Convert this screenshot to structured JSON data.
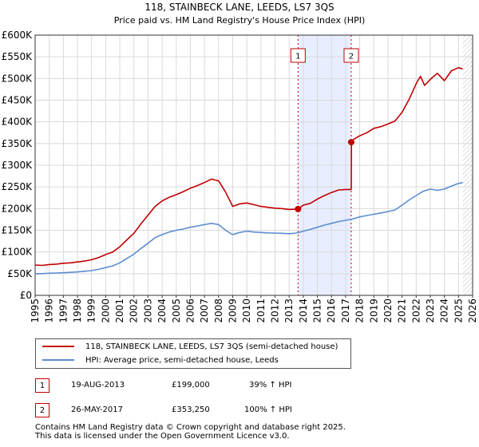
{
  "chart_data": {
    "type": "line",
    "title": "118, STAINBECK LANE, LEEDS, LS7 3QS",
    "subtitle": "Price paid vs. HM Land Registry's House Price Index (HPI)",
    "xlim": [
      1995,
      2026
    ],
    "ylim": [
      0,
      600000
    ],
    "x_ticks": [
      1995,
      1996,
      1997,
      1998,
      1999,
      2000,
      2001,
      2002,
      2003,
      2004,
      2005,
      2006,
      2007,
      2008,
      2009,
      2010,
      2011,
      2012,
      2013,
      2014,
      2015,
      2016,
      2017,
      2018,
      2019,
      2020,
      2021,
      2022,
      2023,
      2024,
      2025,
      2026
    ],
    "y_ticks": [
      {
        "value": 0,
        "label": "£0"
      },
      {
        "value": 50000,
        "label": "£50K"
      },
      {
        "value": 100000,
        "label": "£100K"
      },
      {
        "value": 150000,
        "label": "£150K"
      },
      {
        "value": 200000,
        "label": "£200K"
      },
      {
        "value": 250000,
        "label": "£250K"
      },
      {
        "value": 300000,
        "label": "£300K"
      },
      {
        "value": 350000,
        "label": "£350K"
      },
      {
        "value": 400000,
        "label": "£400K"
      },
      {
        "value": 450000,
        "label": "£450K"
      },
      {
        "value": 500000,
        "label": "£500K"
      },
      {
        "value": 550000,
        "label": "£550K"
      },
      {
        "value": 600000,
        "label": "£600K"
      }
    ],
    "series": [
      {
        "name": "118, STAINBECK LANE, LEEDS, LS7 3QS (semi-detached house)",
        "color": "#c00000",
        "x": [
          1995,
          1995.5,
          1996,
          1996.5,
          1997,
          1997.5,
          1998,
          1998.5,
          1999,
          1999.5,
          2000,
          2000.5,
          2001,
          2001.5,
          2002,
          2002.5,
          2003,
          2003.5,
          2004,
          2004.5,
          2005,
          2005.5,
          2006,
          2006.5,
          2007,
          2007.5,
          2008,
          2008.5,
          2009,
          2009.5,
          2010,
          2010.5,
          2011,
          2011.5,
          2012,
          2012.5,
          2013,
          2013.63,
          2014,
          2014.5,
          2015,
          2015.5,
          2016,
          2016.5,
          2017,
          2017.4,
          2017.41,
          2017.5,
          2018,
          2018.5,
          2019,
          2019.5,
          2020,
          2020.5,
          2021,
          2021.5,
          2022,
          2022.3,
          2022.6,
          2023,
          2023.5,
          2024,
          2024.5,
          2025,
          2025.3
        ],
        "values": [
          70000,
          69000,
          71000,
          72000,
          74000,
          75000,
          77000,
          79000,
          82000,
          87000,
          94000,
          100000,
          112000,
          128000,
          143000,
          165000,
          185000,
          205000,
          218000,
          226000,
          232000,
          239000,
          247000,
          253000,
          260000,
          268000,
          264000,
          238000,
          205000,
          211000,
          213000,
          209000,
          205000,
          203000,
          201000,
          200000,
          198000,
          199000,
          208000,
          212000,
          222000,
          230000,
          237000,
          243000,
          244000,
          244000,
          353250,
          358000,
          368000,
          375000,
          385000,
          389000,
          395000,
          402000,
          422000,
          452000,
          488000,
          505000,
          484000,
          498000,
          512000,
          495000,
          518000,
          525000,
          522000
        ]
      },
      {
        "name": "HPI: Average price, semi-detached house, Leeds",
        "color": "#5b8dd0",
        "x": [
          1995,
          1995.5,
          1996,
          1996.5,
          1997,
          1997.5,
          1998,
          1998.5,
          1999,
          1999.5,
          2000,
          2000.5,
          2001,
          2001.5,
          2002,
          2002.5,
          2003,
          2003.5,
          2004,
          2004.5,
          2005,
          2005.5,
          2006,
          2006.5,
          2007,
          2007.5,
          2008,
          2008.5,
          2009,
          2009.5,
          2010,
          2010.5,
          2011,
          2011.5,
          2012,
          2012.5,
          2013,
          2013.5,
          2014,
          2014.5,
          2015,
          2015.5,
          2016,
          2016.5,
          2017,
          2017.5,
          2018,
          2018.5,
          2019,
          2019.5,
          2020,
          2020.5,
          2021,
          2021.5,
          2022,
          2022.5,
          2023,
          2023.5,
          2024,
          2024.5,
          2025,
          2025.3
        ],
        "values": [
          50000,
          50000,
          51000,
          51500,
          52000,
          53000,
          54000,
          55500,
          57000,
          60000,
          64000,
          68000,
          75000,
          85000,
          95000,
          108000,
          120000,
          133000,
          140000,
          146000,
          150000,
          153000,
          157000,
          160000,
          163000,
          166000,
          163000,
          150000,
          140000,
          145000,
          148000,
          146000,
          145000,
          144000,
          143500,
          143000,
          142000,
          143500,
          148000,
          152000,
          157000,
          162000,
          166000,
          170000,
          173000,
          176000,
          181000,
          184000,
          187000,
          190000,
          193000,
          197000,
          208000,
          220000,
          230000,
          240000,
          245000,
          242000,
          245000,
          252000,
          258000,
          260000
        ]
      }
    ],
    "transactions": [
      {
        "id": "1",
        "date": "19-AUG-2013",
        "year": 2013.63,
        "price": 199000,
        "price_label": "£199,000",
        "hpi_change": "39% ↑ HPI"
      },
      {
        "id": "2",
        "date": "26-MAY-2017",
        "year": 2017.4,
        "price": 353250,
        "price_label": "£353,250",
        "hpi_change": "100% ↑ HPI"
      }
    ],
    "shaded_region": [
      2013.63,
      2017.4
    ],
    "future_hatch_from": 2025.3
  },
  "legend": {
    "property_label": "118, STAINBECK LANE, LEEDS, LS7 3QS (semi-detached house)",
    "hpi_label": "HPI: Average price, semi-detached house, Leeds"
  },
  "footer": {
    "line1": "Contains HM Land Registry data © Crown copyright and database right 2025.",
    "line2": "This data is licensed under the Open Government Licence v3.0."
  },
  "colors": {
    "property": "#c00000",
    "hpi": "#5b8dd0",
    "shade": "#e8eeff",
    "grid": "#d9d9d9"
  }
}
